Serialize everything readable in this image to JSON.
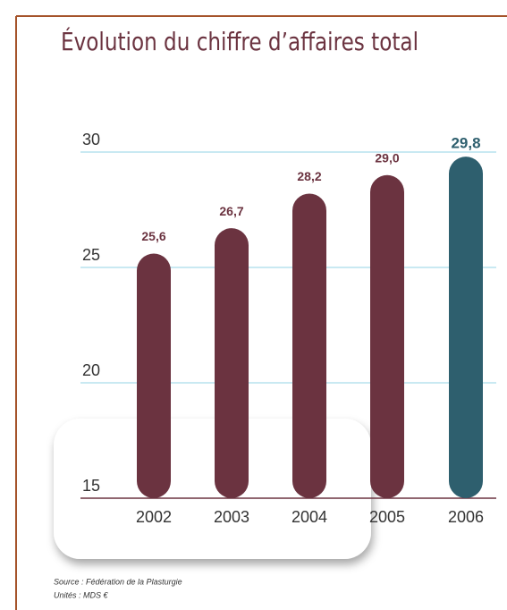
{
  "chart_data": {
    "type": "bar",
    "title": "Évolution du chiffre d’affaires total",
    "categories": [
      "2002",
      "2003",
      "2004",
      "2005",
      "2006"
    ],
    "values": [
      25.6,
      26.7,
      28.2,
      29.0,
      29.8
    ],
    "value_labels": [
      "25,6",
      "26,7",
      "28,2",
      "29,0",
      "29,8"
    ],
    "colors": [
      "#6b3340",
      "#6b3340",
      "#6b3340",
      "#6b3340",
      "#2e5f6e"
    ],
    "ylim": [
      15,
      30
    ],
    "yticks": [
      15,
      20,
      25,
      30
    ],
    "grid": true,
    "source": "Source : Fédération de la Plasturgie",
    "units": "Unités : MDS €"
  }
}
